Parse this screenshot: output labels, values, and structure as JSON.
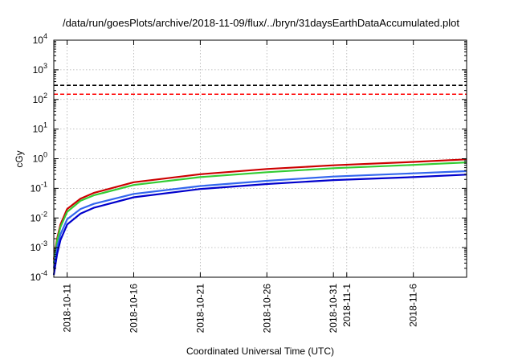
{
  "chart_data": {
    "type": "line",
    "title": "/data/run/goesPlots/archive/2018-11-09/flux/../bryn/31daysEarthDataAccumulated.plot",
    "xlabel": "Coordinated Universal Time (UTC)",
    "ylabel": "cGy",
    "yscale": "log",
    "ylim": [
      0.0001,
      10000
    ],
    "xlim": [
      "2018-10-10",
      "2018-11-10"
    ],
    "grid": true,
    "y_ticks": [
      {
        "value": 0.0001,
        "base": "10",
        "exp": "-4"
      },
      {
        "value": 0.001,
        "base": "10",
        "exp": "-3"
      },
      {
        "value": 0.01,
        "base": "10",
        "exp": "-2"
      },
      {
        "value": 0.1,
        "base": "10",
        "exp": "-1"
      },
      {
        "value": 1,
        "base": "10",
        "exp": "0"
      },
      {
        "value": 10,
        "base": "10",
        "exp": "1"
      },
      {
        "value": 100,
        "base": "10",
        "exp": "2"
      },
      {
        "value": 1000,
        "base": "10",
        "exp": "3"
      },
      {
        "value": 10000,
        "base": "10",
        "exp": "4"
      }
    ],
    "x_ticks": [
      {
        "value": "2018-10-11",
        "label": "2018-10-11"
      },
      {
        "value": "2018-10-16",
        "label": "2018-10-16"
      },
      {
        "value": "2018-10-21",
        "label": "2018-10-21"
      },
      {
        "value": "2018-10-26",
        "label": "2018-10-26"
      },
      {
        "value": "2018-10-31",
        "label": "2018-10-31"
      },
      {
        "value": "2018-11-01",
        "label": "2018-11-1"
      },
      {
        "value": "2018-11-06",
        "label": "2018-11-6"
      }
    ],
    "reference_lines": [
      {
        "y": 300,
        "color": "#000000",
        "style": "dashed"
      },
      {
        "y": 150,
        "color": "#ff0000",
        "style": "dashed"
      }
    ],
    "series": [
      {
        "color": "#cc0000",
        "x": [
          "2018-10-10T00:00",
          "2018-10-10T06:00",
          "2018-10-10T12:00",
          "2018-10-11T00:00",
          "2018-10-12T00:00",
          "2018-10-13T00:00",
          "2018-10-16T00:00",
          "2018-10-21T00:00",
          "2018-10-26T00:00",
          "2018-10-31T00:00",
          "2018-11-06T00:00",
          "2018-11-10T00:00"
        ],
        "y": [
          0.0004,
          0.002,
          0.006,
          0.02,
          0.045,
          0.07,
          0.16,
          0.3,
          0.45,
          0.6,
          0.78,
          0.95
        ]
      },
      {
        "color": "#33cc33",
        "x": [
          "2018-10-10T00:00",
          "2018-10-10T06:00",
          "2018-10-10T12:00",
          "2018-10-11T00:00",
          "2018-10-12T00:00",
          "2018-10-13T00:00",
          "2018-10-16T00:00",
          "2018-10-21T00:00",
          "2018-10-26T00:00",
          "2018-10-31T00:00",
          "2018-11-06T00:00",
          "2018-11-10T00:00"
        ],
        "y": [
          0.0003,
          0.0017,
          0.005,
          0.016,
          0.038,
          0.058,
          0.13,
          0.24,
          0.35,
          0.48,
          0.62,
          0.75
        ]
      },
      {
        "color": "#3366ee",
        "x": [
          "2018-10-10T00:00",
          "2018-10-10T06:00",
          "2018-10-10T12:00",
          "2018-10-11T00:00",
          "2018-10-12T00:00",
          "2018-10-13T00:00",
          "2018-10-16T00:00",
          "2018-10-21T00:00",
          "2018-10-26T00:00",
          "2018-10-31T00:00",
          "2018-11-06T00:00",
          "2018-11-10T00:00"
        ],
        "y": [
          0.0002,
          0.001,
          0.0028,
          0.009,
          0.02,
          0.03,
          0.065,
          0.12,
          0.18,
          0.25,
          0.32,
          0.38
        ]
      },
      {
        "color": "#0000cc",
        "x": [
          "2018-10-10T00:00",
          "2018-10-10T06:00",
          "2018-10-10T12:00",
          "2018-10-11T00:00",
          "2018-10-12T00:00",
          "2018-10-13T00:00",
          "2018-10-16T00:00",
          "2018-10-21T00:00",
          "2018-10-26T00:00",
          "2018-10-31T00:00",
          "2018-11-06T00:00",
          "2018-11-10T00:00"
        ],
        "y": [
          0.00012,
          0.0006,
          0.0018,
          0.006,
          0.014,
          0.022,
          0.05,
          0.095,
          0.14,
          0.19,
          0.24,
          0.29
        ]
      }
    ]
  }
}
